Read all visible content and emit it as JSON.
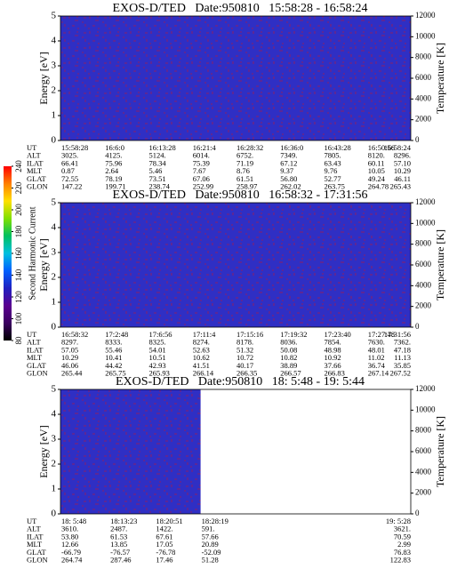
{
  "colorbar": {
    "label": "Second Harmonic Current",
    "ticks": [
      80,
      100,
      120,
      140,
      160,
      180,
      200,
      220,
      240
    ],
    "colors": [
      "#000000",
      "#3a0060",
      "#5a0090",
      "#2020c0",
      "#0060ff",
      "#00c0e0",
      "#00c060",
      "#80e000",
      "#ffe000",
      "#ff8000",
      "#ff0000"
    ]
  },
  "chart_data": [
    {
      "type": "heatmap",
      "title": "EXOS-D/TED   Date:950810   15:58:28 - 16:58:24",
      "ylabel": "Energy [eV]",
      "y2label": "Temperature [K]",
      "ylim": [
        0,
        5
      ],
      "yticks": [
        0,
        1,
        2,
        3,
        4,
        5
      ],
      "y2lim": [
        0,
        12000
      ],
      "y2ticks": [
        0,
        2000,
        4000,
        6000,
        8000,
        10000,
        12000
      ],
      "ephemeris": {
        "labels": [
          "UT",
          "ALT",
          "ILAT",
          "MLT",
          "GLAT",
          "GLON"
        ],
        "rows": [
          [
            "15:58:28",
            "16:6:0",
            "16:13:28",
            "16:21:4",
            "16:28:32",
            "16:36:0",
            "16:43:28",
            "16:50:56",
            "16:58:24"
          ],
          [
            "3025.",
            "4125.",
            "5124.",
            "6014.",
            "6752.",
            "7349.",
            "7805.",
            "8120.",
            "8296."
          ],
          [
            "66.41",
            "75.96",
            "78.34",
            "75.39",
            "71.19",
            "67.12",
            "63.43",
            "60.11",
            "57.10"
          ],
          [
            "0.87",
            "2.64",
            "5.46",
            "7.67",
            "8.76",
            "9.37",
            "9.76",
            "10.05",
            "10.29"
          ],
          [
            "72.55",
            "78.19",
            "73.51",
            "67.06",
            "61.51",
            "56.80",
            "52.77",
            "49.24",
            "46.11"
          ],
          [
            "147.22",
            "199.71",
            "238.74",
            "252.99",
            "258.97",
            "262.02",
            "263.75",
            "264.78",
            "265.43"
          ]
        ]
      }
    },
    {
      "type": "heatmap",
      "title": "EXOS-D/TED   Date:950810   16:58:32 - 17:31:56",
      "ylabel": "Energy [eV]",
      "y2label": "Temperature [K]",
      "ylim": [
        0,
        5
      ],
      "yticks": [
        0,
        1,
        2,
        3,
        4,
        5
      ],
      "y2lim": [
        0,
        12000
      ],
      "y2ticks": [
        0,
        2000,
        4000,
        6000,
        8000,
        10000,
        12000
      ],
      "ephemeris": {
        "labels": [
          "UT",
          "ALT",
          "ILAT",
          "MLT",
          "GLAT",
          "GLON"
        ],
        "rows": [
          [
            "16:58:32",
            "17:2:48",
            "17:6:56",
            "17:11:4",
            "17:15:16",
            "17:19:32",
            "17:23:40",
            "17:27:48",
            "17:31:56"
          ],
          [
            "8297.",
            "8333.",
            "8325.",
            "8274.",
            "8178.",
            "8036.",
            "7854.",
            "7630.",
            "7362."
          ],
          [
            "57.05",
            "55.46",
            "54.01",
            "52.63",
            "51.32",
            "50.08",
            "48.98",
            "48.01",
            "47.18"
          ],
          [
            "10.29",
            "10.41",
            "10.51",
            "10.62",
            "10.72",
            "10.82",
            "10.92",
            "11.02",
            "11.13"
          ],
          [
            "46.06",
            "44.42",
            "42.93",
            "41.51",
            "40.17",
            "38.89",
            "37.66",
            "36.74",
            "35.85"
          ],
          [
            "265.44",
            "265.75",
            "265.93",
            "266.14",
            "266.35",
            "266.57",
            "266.83",
            "267.14",
            "267.52"
          ]
        ]
      }
    },
    {
      "type": "heatmap",
      "title": "EXOS-D/TED   Date:950810   18: 5:48 - 19: 5:44",
      "ylabel": "Energy [eV]",
      "y2label": "Temperature [K]",
      "ylim": [
        0,
        5
      ],
      "yticks": [
        0,
        1,
        2,
        3,
        4,
        5
      ],
      "y2lim": [
        0,
        12000
      ],
      "y2ticks": [
        0,
        2000,
        4000,
        6000,
        8000,
        10000,
        12000
      ],
      "ephemeris": {
        "labels": [
          "UT",
          "ALT",
          "ILAT",
          "MLT",
          "GLAT",
          "GLON"
        ],
        "rows": [
          [
            "18: 5:48",
            "18:13:23",
            "18:20:51",
            "18:28:19",
            "19: 5:28"
          ],
          [
            "3610.",
            "2487.",
            "1422.",
            "591.",
            "3621."
          ],
          [
            "53.80",
            "61.53",
            "67.61",
            "57.66",
            "70.59"
          ],
          [
            "12.66",
            "13.85",
            "17.05",
            "20.89",
            "2.99"
          ],
          [
            "-66.79",
            "-76.57",
            "-76.78",
            "-52.09",
            "76.83"
          ],
          [
            "264.74",
            "287.46",
            "17.46",
            "51.28",
            "122.83"
          ]
        ]
      }
    }
  ]
}
